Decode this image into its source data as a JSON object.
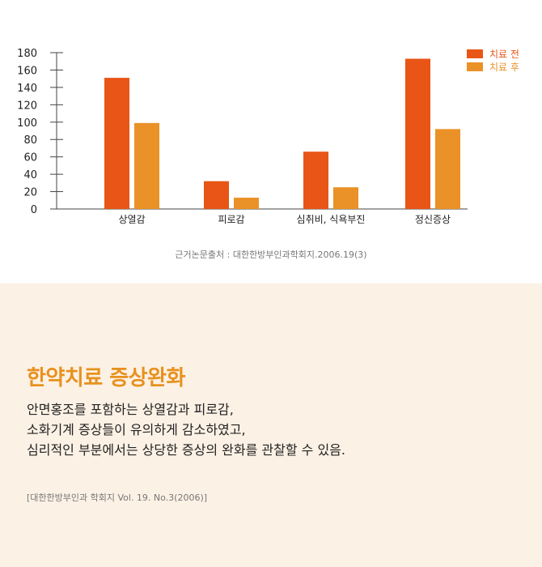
{
  "chart_data": {
    "type": "bar",
    "categories": [
      "상열감",
      "피로감",
      "심취비, 식욕부진",
      "정신증상"
    ],
    "series": [
      {
        "name": "치료 전",
        "values": [
          151,
          32,
          66,
          173
        ]
      },
      {
        "name": "치료 후",
        "values": [
          99,
          13,
          25,
          92
        ]
      }
    ],
    "ylim": [
      0,
      180
    ],
    "yticks": [
      0,
      20,
      40,
      60,
      80,
      100,
      120,
      140,
      160,
      180
    ],
    "legend_position": "top-right",
    "grid": false,
    "colors": {
      "before": "#e85516",
      "after": "#ea9127"
    }
  },
  "chart_source": "근거논문출처 : 대한한방부인과학회지.2006.19(3)",
  "info": {
    "headline": "한약치료 증상완화",
    "body_lines": [
      "안면홍조를 포함하는 상열감과 피로감,",
      "소화기계 증상들이 유의하게 감소하였고,",
      "심리적인 부분에서는 상당한 증상의 완화를 관찰할 수 있음."
    ],
    "citation": "[대한한방부인과 학회지 Vol. 19. No.3(2006)]"
  }
}
